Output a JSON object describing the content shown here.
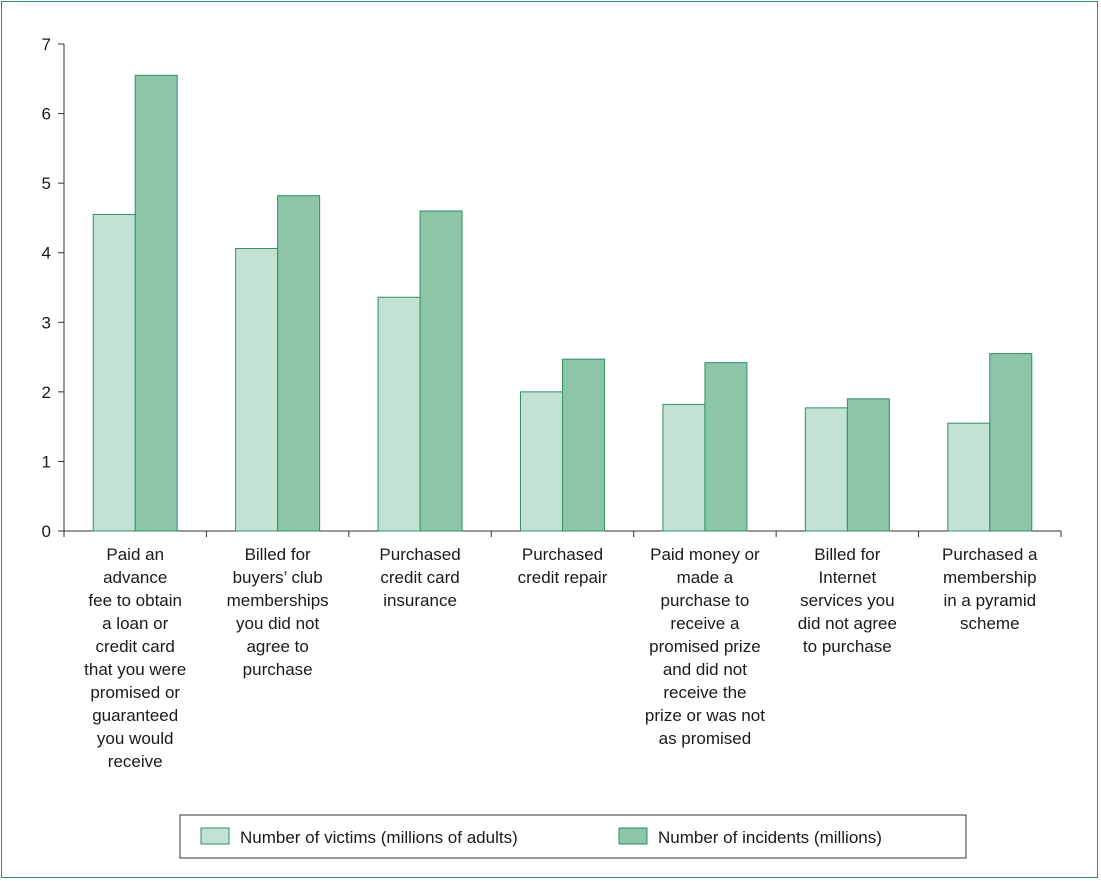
{
  "chart_data": {
    "type": "bar",
    "categories": [
      [
        "Paid an",
        "advance",
        "fee to obtain",
        "a loan or",
        "credit card",
        "that you were",
        "promised or",
        "guaranteed",
        "you would",
        "receive"
      ],
      [
        "Billed for",
        "buyers’ club",
        "memberships",
        "you did not",
        "agree to",
        "purchase"
      ],
      [
        "Purchased",
        "credit card",
        "insurance"
      ],
      [
        "Purchased",
        "credit repair"
      ],
      [
        "Paid money or",
        "made a",
        "purchase to",
        "receive a",
        "promised prize",
        "and did not",
        "receive the",
        "prize or was not",
        "as promised"
      ],
      [
        "Billed for",
        "Internet",
        "services you",
        "did not agree",
        "to purchase"
      ],
      [
        "Purchased a",
        "membership",
        "in a pyramid",
        "scheme"
      ]
    ],
    "series": [
      {
        "name": "Number of victims (millions of adults)",
        "values": [
          4.55,
          4.06,
          3.36,
          2.0,
          1.82,
          1.77,
          1.55
        ],
        "color": "#c4e2d4"
      },
      {
        "name": "Number of incidents (millions)",
        "values": [
          6.55,
          4.82,
          4.6,
          2.47,
          2.42,
          1.9,
          2.55
        ],
        "color": "#8cc5a8"
      }
    ],
    "ylim": [
      0,
      7
    ],
    "yticks": [
      "0",
      "1",
      "2",
      "3",
      "4",
      "5",
      "6",
      "7"
    ],
    "grid": false,
    "legend_position": "bottom",
    "colors": {
      "border": "#2f8f66",
      "axis": "#333333"
    }
  }
}
